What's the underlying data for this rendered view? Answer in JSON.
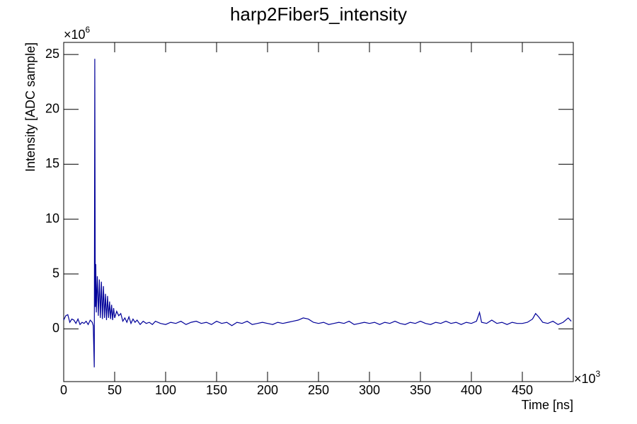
{
  "chart_data": {
    "type": "line",
    "title": "harp2Fiber5_intensity",
    "x_label": "Time [ns]",
    "y_label": "Intensity [ADC sample]",
    "x_multiplier_base": "×10",
    "x_multiplier_power": "3",
    "y_multiplier_base": "×10",
    "y_multiplier_power": "6",
    "color": "#000099",
    "xlim": [
      0,
      500
    ],
    "ylim": [
      -4.8,
      26.1
    ],
    "xticks": [
      0,
      50,
      100,
      150,
      200,
      250,
      300,
      350,
      400,
      450
    ],
    "yticks": [
      0,
      5,
      10,
      15,
      20,
      25
    ],
    "x": [
      0,
      2,
      4,
      6,
      8,
      10,
      12,
      14,
      16,
      18,
      20,
      22,
      24,
      26,
      28,
      29,
      30,
      30.5,
      31,
      31.5,
      32,
      33,
      34,
      35,
      36,
      37,
      38,
      39,
      40,
      41,
      42,
      43,
      44,
      45,
      46,
      47,
      48,
      49,
      50,
      52,
      54,
      56,
      58,
      60,
      62,
      64,
      66,
      68,
      70,
      72,
      75,
      78,
      81,
      84,
      87,
      90,
      95,
      100,
      105,
      110,
      115,
      120,
      125,
      130,
      135,
      140,
      145,
      150,
      155,
      160,
      165,
      170,
      175,
      180,
      185,
      190,
      195,
      200,
      205,
      210,
      215,
      220,
      225,
      230,
      235,
      240,
      245,
      250,
      255,
      260,
      265,
      270,
      275,
      280,
      285,
      290,
      295,
      300,
      305,
      310,
      315,
      320,
      325,
      330,
      335,
      340,
      345,
      350,
      355,
      360,
      365,
      370,
      375,
      380,
      385,
      390,
      395,
      400,
      405,
      408,
      410,
      415,
      420,
      425,
      430,
      435,
      440,
      445,
      450,
      455,
      460,
      463,
      466,
      470,
      475,
      480,
      485,
      490,
      495,
      498
    ],
    "values": [
      0.8,
      1.2,
      1.3,
      0.6,
      0.9,
      0.8,
      0.5,
      0.9,
      0.4,
      0.6,
      0.5,
      0.7,
      0.4,
      0.8,
      0.6,
      0.3,
      -3.5,
      24.6,
      2.0,
      5.9,
      1.5,
      4.8,
      1.2,
      4.5,
      1.0,
      4.3,
      0.9,
      3.9,
      1.0,
      3.2,
      0.8,
      3.0,
      1.0,
      2.5,
      0.9,
      2.2,
      0.8,
      1.9,
      1.0,
      1.6,
      1.2,
      1.4,
      0.7,
      1.0,
      0.6,
      1.1,
      0.5,
      0.9,
      0.6,
      0.8,
      0.4,
      0.7,
      0.5,
      0.6,
      0.4,
      0.7,
      0.5,
      0.4,
      0.6,
      0.5,
      0.7,
      0.4,
      0.6,
      0.7,
      0.5,
      0.6,
      0.4,
      0.7,
      0.5,
      0.6,
      0.3,
      0.6,
      0.5,
      0.7,
      0.4,
      0.5,
      0.6,
      0.5,
      0.4,
      0.6,
      0.5,
      0.6,
      0.7,
      0.8,
      1.0,
      0.9,
      0.6,
      0.5,
      0.6,
      0.4,
      0.5,
      0.6,
      0.5,
      0.7,
      0.4,
      0.5,
      0.6,
      0.5,
      0.6,
      0.4,
      0.6,
      0.5,
      0.7,
      0.5,
      0.4,
      0.6,
      0.5,
      0.7,
      0.5,
      0.4,
      0.6,
      0.5,
      0.7,
      0.5,
      0.6,
      0.4,
      0.6,
      0.5,
      0.7,
      1.5,
      0.6,
      0.5,
      0.8,
      0.5,
      0.6,
      0.4,
      0.6,
      0.5,
      0.5,
      0.6,
      0.9,
      1.4,
      1.1,
      0.6,
      0.5,
      0.7,
      0.4,
      0.6,
      1.0,
      0.7
    ]
  }
}
